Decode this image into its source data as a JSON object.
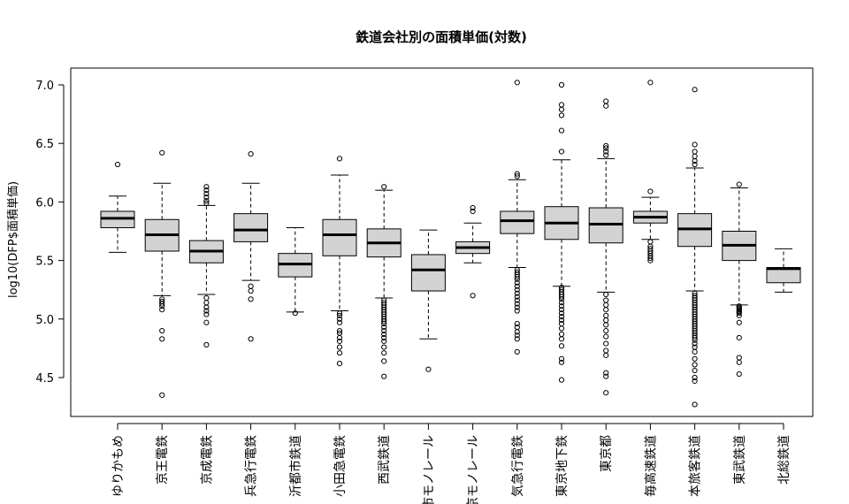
{
  "chart_data": {
    "type": "box",
    "title": "鉄道会社別の面積単価(対数)",
    "xlabel": "",
    "ylabel": "log10(DFP$面積単価)",
    "ylim": [
      4.2,
      7.1
    ],
    "yticks": [
      "4.5",
      "5.0",
      "5.5",
      "6.0",
      "6.5",
      "7.0"
    ],
    "grid": false,
    "legend": "none",
    "box_fill": "#d3d3d3",
    "categories": [
      "ゆりかもめ",
      "京王電鉄",
      "京成電鉄",
      "兵急行電鉄",
      "沂都市鉄道",
      "小田急電鉄",
      "西武鉄道",
      "市モノレール",
      "京モノレール",
      "気急行電鉄",
      "東京地下鉄",
      "東京都",
      "毎高速鉄道",
      "本旅客鉄道",
      "東武鉄道",
      "北総鉄道"
    ],
    "boxes": [
      {
        "whisker_low": 5.57,
        "q1": 5.78,
        "median": 5.86,
        "q3": 5.92,
        "whisker_high": 6.05,
        "outliers": [
          6.32
        ]
      },
      {
        "whisker_low": 5.2,
        "q1": 5.58,
        "median": 5.72,
        "q3": 5.85,
        "whisker_high": 6.16,
        "outliers": [
          6.42,
          5.17,
          5.15,
          5.13,
          5.11,
          5.08,
          4.9,
          4.83,
          4.35
        ]
      },
      {
        "whisker_low": 5.21,
        "q1": 5.48,
        "median": 5.58,
        "q3": 5.67,
        "whisker_high": 5.97,
        "outliers": [
          6.13,
          6.1,
          6.07,
          6.04,
          6.01,
          5.99,
          5.18,
          5.14,
          5.1,
          5.07,
          5.04,
          4.97,
          4.78
        ]
      },
      {
        "whisker_low": 5.33,
        "q1": 5.66,
        "median": 5.76,
        "q3": 5.9,
        "whisker_high": 6.16,
        "outliers": [
          6.41,
          5.28,
          5.24,
          5.17,
          4.83
        ]
      },
      {
        "whisker_low": 5.06,
        "q1": 5.36,
        "median": 5.47,
        "q3": 5.56,
        "whisker_high": 5.78,
        "outliers": [
          5.05
        ]
      },
      {
        "whisker_low": 5.07,
        "q1": 5.54,
        "median": 5.72,
        "q3": 5.85,
        "whisker_high": 6.23,
        "outliers": [
          6.37,
          5.05,
          5.03,
          5.0,
          4.97,
          4.9,
          4.88,
          4.84,
          4.81,
          4.76,
          4.71,
          4.62
        ]
      },
      {
        "whisker_low": 5.18,
        "q1": 5.53,
        "median": 5.65,
        "q3": 5.77,
        "whisker_high": 6.1,
        "outliers": [
          6.13,
          5.16,
          5.14,
          5.12,
          5.1,
          5.08,
          5.06,
          5.04,
          5.02,
          5.0,
          4.98,
          4.96,
          4.93,
          4.9,
          4.87,
          4.84,
          4.81,
          4.76,
          4.71,
          4.64,
          4.51
        ]
      },
      {
        "whisker_low": 4.83,
        "q1": 5.24,
        "median": 5.42,
        "q3": 5.55,
        "whisker_high": 5.76,
        "outliers": [
          4.57
        ]
      },
      {
        "whisker_low": 5.48,
        "q1": 5.56,
        "median": 5.61,
        "q3": 5.66,
        "whisker_high": 5.82,
        "outliers": [
          5.95,
          5.92,
          5.2
        ]
      },
      {
        "whisker_low": 5.44,
        "q1": 5.73,
        "median": 5.84,
        "q3": 5.92,
        "whisker_high": 6.19,
        "outliers": [
          7.02,
          6.24,
          6.22,
          5.42,
          5.4,
          5.38,
          5.36,
          5.34,
          5.31,
          5.28,
          5.25,
          5.22,
          5.19,
          5.16,
          5.13,
          5.1,
          5.07,
          4.96,
          4.93,
          4.89,
          4.86,
          4.83,
          4.72
        ]
      },
      {
        "whisker_low": 5.28,
        "q1": 5.68,
        "median": 5.82,
        "q3": 5.96,
        "whisker_high": 6.36,
        "outliers": [
          7.0,
          6.83,
          6.79,
          6.74,
          6.61,
          6.43,
          5.27,
          5.25,
          5.23,
          5.21,
          5.19,
          5.17,
          5.14,
          5.11,
          5.08,
          5.05,
          5.02,
          4.99,
          4.96,
          4.92,
          4.87,
          4.83,
          4.77,
          4.66,
          4.63,
          4.48
        ]
      },
      {
        "whisker_low": 5.23,
        "q1": 5.65,
        "median": 5.81,
        "q3": 5.95,
        "whisker_high": 6.37,
        "outliers": [
          6.86,
          6.82,
          6.48,
          6.46,
          6.43,
          6.4,
          5.21,
          5.16,
          5.12,
          5.08,
          5.03,
          4.99,
          4.95,
          4.9,
          4.85,
          4.79,
          4.73,
          4.69,
          4.54,
          4.51,
          4.37
        ]
      },
      {
        "whisker_low": 5.68,
        "q1": 5.82,
        "median": 5.87,
        "q3": 5.92,
        "whisker_high": 6.04,
        "outliers": [
          7.02,
          6.09,
          5.66,
          5.62,
          5.6,
          5.58,
          5.56,
          5.54,
          5.52,
          5.5
        ]
      },
      {
        "whisker_low": 5.24,
        "q1": 5.62,
        "median": 5.77,
        "q3": 5.9,
        "whisker_high": 6.29,
        "outliers": [
          6.96,
          6.49,
          6.43,
          6.39,
          6.35,
          6.32,
          5.22,
          5.2,
          5.18,
          5.16,
          5.14,
          5.12,
          5.1,
          5.08,
          5.06,
          5.04,
          5.02,
          5.0,
          4.98,
          4.96,
          4.94,
          4.92,
          4.9,
          4.88,
          4.86,
          4.84,
          4.82,
          4.79,
          4.76,
          4.72,
          4.66,
          4.61,
          4.56,
          4.5,
          4.47,
          4.27
        ]
      },
      {
        "whisker_low": 5.12,
        "q1": 5.5,
        "median": 5.63,
        "q3": 5.75,
        "whisker_high": 6.12,
        "outliers": [
          6.15,
          5.11,
          5.1,
          5.09,
          5.08,
          5.07,
          5.06,
          5.05,
          5.03,
          4.97,
          4.84,
          4.67,
          4.63,
          4.53
        ]
      },
      {
        "whisker_low": 5.23,
        "q1": 5.31,
        "median": 5.43,
        "q3": 5.44,
        "whisker_high": 5.6,
        "outliers": []
      }
    ]
  }
}
